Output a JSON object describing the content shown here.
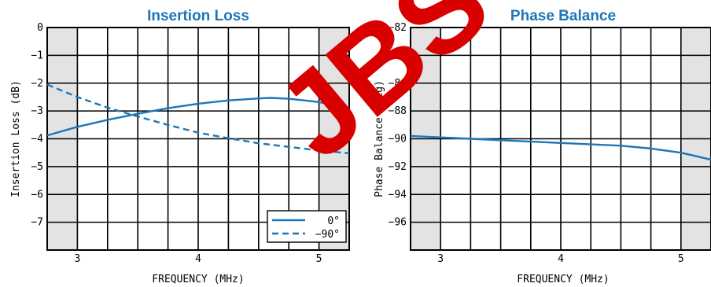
{
  "watermark": "JBS",
  "chart_data": [
    {
      "type": "line",
      "title": "Insertion Loss",
      "xlabel": "FREQUENCY (MHz)",
      "ylabel": "Insertion Loss (dB)",
      "xlim": [
        2.75,
        5.25
      ],
      "ylim": [
        -8,
        0
      ],
      "xticks": [
        3,
        4,
        5
      ],
      "yticks": [
        0,
        -1,
        -2,
        -3,
        -4,
        -5,
        -6,
        -7
      ],
      "ytick_labels": [
        "0",
        "−1",
        "−2",
        "−3",
        "−4",
        "−5",
        "−6",
        "−7"
      ],
      "shaded_x": [
        [
          2.75,
          3.0
        ],
        [
          5.0,
          5.25
        ]
      ],
      "grid": true,
      "legend_position": "bottom-right",
      "series": [
        {
          "name": "0°",
          "style": "solid",
          "color": "#1d76b8",
          "x": [
            2.75,
            3.0,
            3.25,
            3.5,
            3.75,
            4.0,
            4.25,
            4.5,
            4.6,
            4.75,
            5.0,
            5.25
          ],
          "y": [
            -3.88,
            -3.57,
            -3.32,
            -3.1,
            -2.9,
            -2.74,
            -2.62,
            -2.55,
            -2.53,
            -2.56,
            -2.68,
            -2.9
          ]
        },
        {
          "name": "−90°",
          "style": "dashed",
          "color": "#1d76b8",
          "x": [
            2.75,
            3.0,
            3.25,
            3.5,
            3.75,
            4.0,
            4.25,
            4.5,
            4.75,
            5.0,
            5.25
          ],
          "y": [
            -2.05,
            -2.5,
            -2.88,
            -3.2,
            -3.5,
            -3.78,
            -3.98,
            -4.16,
            -4.29,
            -4.42,
            -4.52
          ]
        }
      ]
    },
    {
      "type": "line",
      "title": "Phase Balance",
      "xlabel": "FREQUENCY (MHz)",
      "ylabel": "Phase Balance (deg)",
      "xlim": [
        2.75,
        5.25
      ],
      "ylim": [
        -98,
        -82
      ],
      "xticks": [
        3,
        4,
        5
      ],
      "yticks": [
        -82,
        -84,
        -86,
        -88,
        -90,
        -92,
        -94,
        -96
      ],
      "ytick_labels": [
        "−82",
        "−84",
        "−86",
        "−88",
        "−90",
        "−92",
        "−94",
        "−96"
      ],
      "shaded_x": [
        [
          2.75,
          3.0
        ],
        [
          5.0,
          5.25
        ]
      ],
      "grid": true,
      "series": [
        {
          "style": "solid",
          "color": "#1d76b8",
          "x": [
            2.75,
            3.0,
            3.25,
            3.5,
            3.75,
            4.0,
            4.25,
            4.5,
            4.75,
            5.0,
            5.25
          ],
          "y": [
            -89.8,
            -89.9,
            -90.0,
            -90.1,
            -90.2,
            -90.3,
            -90.4,
            -90.5,
            -90.7,
            -91.0,
            -91.5
          ]
        }
      ]
    }
  ]
}
